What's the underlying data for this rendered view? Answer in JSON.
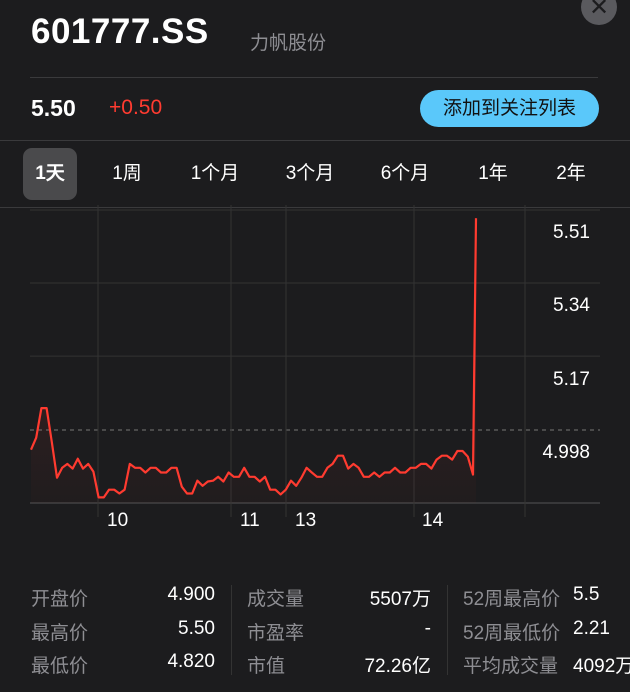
{
  "header": {
    "symbol": "601777.SS",
    "name": "力帆股份",
    "close_icon": "close-icon"
  },
  "quote": {
    "price": "5.50",
    "change": "+0.50",
    "change_color": "#ff3b30",
    "watch_button": "添加到关注列表",
    "accent": "#5ac8fa"
  },
  "tabs": [
    {
      "label": "1天",
      "active": true
    },
    {
      "label": "1周"
    },
    {
      "label": "1个月"
    },
    {
      "label": "3个月"
    },
    {
      "label": "6个月"
    },
    {
      "label": "1年"
    },
    {
      "label": "2年"
    }
  ],
  "chart_data": {
    "type": "line",
    "y_tick_labels": [
      "5.51",
      "5.34",
      "5.17",
      "4.998"
    ],
    "y_ticks": [
      5.51,
      5.34,
      5.17,
      4.998
    ],
    "ylim": [
      4.828,
      5.51
    ],
    "x_tick_labels": [
      "10",
      "11",
      "13",
      "14"
    ],
    "previous_close": 4.998,
    "line_color": "#ff3b30",
    "grid": true,
    "values": [
      4.952,
      4.98,
      5.049,
      5.049,
      4.97,
      4.887,
      4.91,
      4.919,
      4.908,
      4.931,
      4.908,
      4.919,
      4.901,
      4.841,
      4.841,
      4.859,
      4.859,
      4.85,
      4.859,
      4.919,
      4.91,
      4.91,
      4.899,
      4.91,
      4.91,
      4.899,
      4.899,
      4.91,
      4.91,
      4.866,
      4.85,
      4.85,
      4.88,
      4.868,
      4.878,
      4.88,
      4.889,
      4.878,
      4.899,
      4.889,
      4.889,
      4.91,
      4.889,
      4.889,
      4.878,
      4.889,
      4.859,
      4.859,
      4.848,
      4.859,
      4.88,
      4.868,
      4.887,
      4.91,
      4.899,
      4.889,
      4.889,
      4.91,
      4.919,
      4.938,
      4.938,
      4.908,
      4.919,
      4.91,
      4.889,
      4.889,
      4.899,
      4.889,
      4.899,
      4.899,
      4.91,
      4.899,
      4.899,
      4.91,
      4.91,
      4.919,
      4.919,
      4.908,
      4.929,
      4.938,
      4.938,
      4.929,
      4.949,
      4.949,
      4.936,
      4.894,
      5.491
    ]
  },
  "stats": [
    [
      {
        "label": "开盘价",
        "value": "4.900"
      },
      {
        "label": "最高价",
        "value": "5.50"
      },
      {
        "label": "最低价",
        "value": "4.820"
      }
    ],
    [
      {
        "label": "成交量",
        "value": "5507万"
      },
      {
        "label": "市盈率",
        "value": "-"
      },
      {
        "label": "市值",
        "value": "72.26亿"
      }
    ],
    [
      {
        "label": "52周最高价",
        "value": "5.5"
      },
      {
        "label": "52周最低价",
        "value": "2.21"
      },
      {
        "label": "平均成交量",
        "value": "4092万"
      }
    ]
  ]
}
